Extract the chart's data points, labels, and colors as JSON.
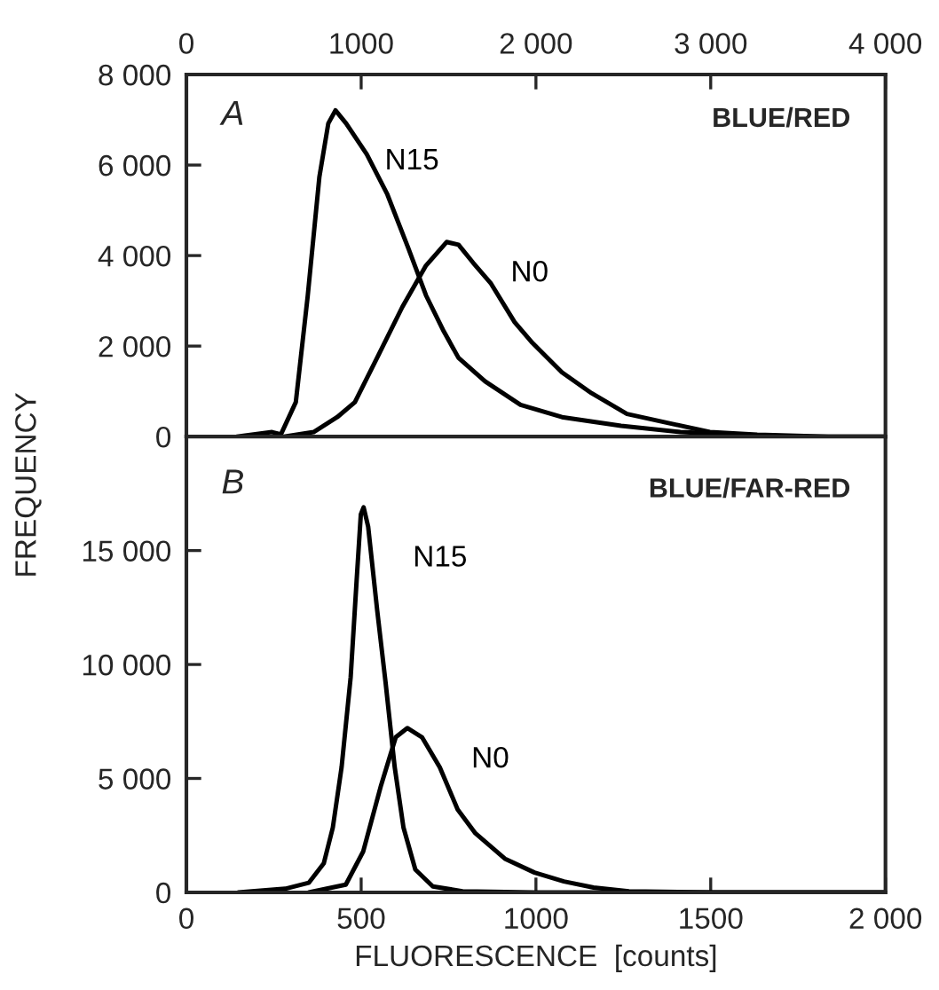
{
  "chart_data": [
    {
      "type": "line",
      "ylabel": "FREQUENCY",
      "annotations": [
        "A",
        "BLUE/RED"
      ],
      "xlim": [
        0,
        4000
      ],
      "xticks": [
        0,
        1000,
        {
          "value": 2000,
          "label": "2 000"
        },
        {
          "value": 3000,
          "label": "3 000"
        },
        {
          "value": 4000,
          "label": "4 000"
        }
      ],
      "ylim": [
        0,
        8000
      ],
      "yticks": [
        0,
        {
          "value": 2000,
          "label": "2 000"
        },
        {
          "value": 4000,
          "label": "4 000"
        },
        {
          "value": 6000,
          "label": "6 000"
        },
        {
          "value": 8000,
          "label": "8 000"
        }
      ],
      "grid": false,
      "legend": false,
      "series": [
        {
          "name": "N15",
          "color": "#000000",
          "x": [
            288,
            490,
            541,
            626,
            694,
            761,
            812,
            853,
            914,
            1032,
            1150,
            1269,
            1371,
            1472,
            1557,
            1709,
            1912,
            2149,
            2487,
            2826,
            3164,
            3503,
            4000
          ],
          "values": [
            0,
            100,
            50,
            760,
            3100,
            5740,
            6920,
            7210,
            6920,
            6240,
            5350,
            4170,
            3120,
            2330,
            1740,
            1220,
            700,
            430,
            240,
            100,
            40,
            0,
            0
          ]
        },
        {
          "name": "N0",
          "color": "#000000",
          "x": [
            558,
            728,
            863,
            964,
            1100,
            1235,
            1371,
            1489,
            1557,
            1641,
            1743,
            1878,
            1980,
            2149,
            2318,
            2521,
            2758,
            2995,
            3266,
            3672,
            4000
          ],
          "values": [
            0,
            100,
            430,
            760,
            1810,
            2860,
            3780,
            4300,
            4240,
            3840,
            3380,
            2530,
            2070,
            1420,
            960,
            500,
            300,
            100,
            40,
            0,
            0
          ]
        }
      ]
    },
    {
      "type": "line",
      "xlabel": "FLUORESCENCE  [counts]",
      "annotations": [
        "B",
        "BLUE/FAR-RED"
      ],
      "xlim": [
        0,
        2000
      ],
      "xticks": [
        0,
        500,
        1000,
        1500,
        {
          "value": 2000,
          "label": "2 000"
        }
      ],
      "ylim": [
        0,
        20000
      ],
      "yticks": [
        0,
        {
          "value": 5000,
          "label": "5 000"
        },
        {
          "value": 10000,
          "label": "10 000"
        },
        {
          "value": 15000,
          "label": "15 000"
        }
      ],
      "grid": false,
      "legend": false,
      "series": [
        {
          "name": "N15",
          "color": "#000000",
          "x": [
            148,
            283,
            350,
            393,
            419,
            444,
            470,
            487,
            499,
            507,
            520,
            546,
            570,
            596,
            621,
            655,
            705,
            790,
            993,
            2000
          ],
          "values": [
            0,
            160,
            420,
            1270,
            2850,
            5490,
            9450,
            13680,
            16580,
            16900,
            16050,
            12360,
            9190,
            5490,
            2850,
            1000,
            260,
            50,
            0,
            0
          ]
        },
        {
          "name": "N0",
          "color": "#000000",
          "x": [
            350,
            456,
            506,
            557,
            599,
            632,
            674,
            725,
            776,
            827,
            911,
            996,
            1080,
            1165,
            1266,
            1502,
            2000
          ],
          "values": [
            0,
            340,
            1800,
            4700,
            6810,
            7210,
            6810,
            5490,
            3640,
            2590,
            1480,
            870,
            480,
            210,
            50,
            0,
            0
          ]
        }
      ]
    }
  ]
}
